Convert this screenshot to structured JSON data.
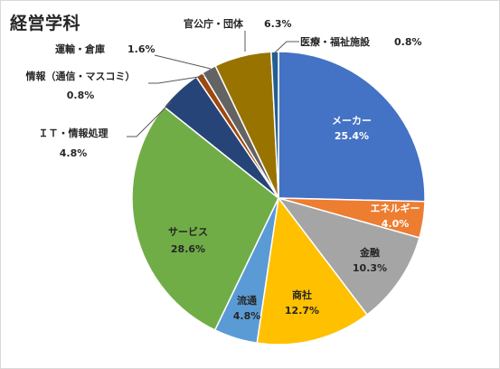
{
  "chart_data": {
    "type": "pie",
    "title": "経営学科",
    "slices": [
      {
        "name": "メーカー",
        "name_lines": [
          "メーカー"
        ],
        "value": 25.4,
        "pct_text": "25.4%",
        "color": "#4472C4",
        "label_inside": true
      },
      {
        "name": "エネルギー",
        "name_lines": [
          "エネルギー"
        ],
        "value": 4.0,
        "pct_text": "4.0%",
        "color": "#ED7D31",
        "label_inside": true
      },
      {
        "name": "金融",
        "name_lines": [
          "金融"
        ],
        "value": 10.3,
        "pct_text": "10.3%",
        "color": "#A5A5A5",
        "label_inside": true
      },
      {
        "name": "商社",
        "name_lines": [
          "商社"
        ],
        "value": 12.7,
        "pct_text": "12.7%",
        "color": "#FFC000",
        "label_inside": true
      },
      {
        "name": "流通",
        "name_lines": [
          "流通"
        ],
        "value": 4.8,
        "pct_text": "4.8%",
        "color": "#5B9BD5",
        "label_inside": true
      },
      {
        "name": "サービス",
        "name_lines": [
          "サービス"
        ],
        "value": 28.6,
        "pct_text": "28.6%",
        "color": "#70AD47",
        "label_inside": true
      },
      {
        "name": "ＩＴ・情報処理",
        "name_lines": [
          "ＩＴ・情報処理"
        ],
        "value": 4.8,
        "pct_text": "4.8%",
        "color": "#264478",
        "label_inside": false
      },
      {
        "name": "情報（通信・マスコミ）",
        "name_lines": [
          "情報（通信・マスコミ）"
        ],
        "value": 0.8,
        "pct_text": "0.8%",
        "color": "#9E480E",
        "label_inside": false
      },
      {
        "name": "運輸・倉庫",
        "name_lines": [
          "運輸・倉庫"
        ],
        "value": 1.6,
        "pct_text": "1.6%",
        "color": "#636363",
        "label_inside": false
      },
      {
        "name": "官公庁・団体",
        "name_lines": [
          "官公庁・団体"
        ],
        "value": 6.3,
        "pct_text": "6.3%",
        "color": "#997300",
        "label_inside": false
      },
      {
        "name": "医療・福祉施設",
        "name_lines": [
          "医療・福祉施設"
        ],
        "value": 0.8,
        "pct_text": "0.8%",
        "color": "#255E91",
        "label_inside": false
      }
    ]
  }
}
